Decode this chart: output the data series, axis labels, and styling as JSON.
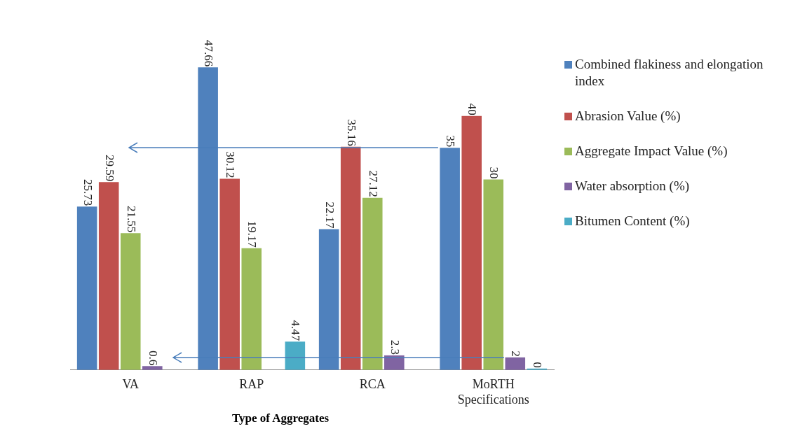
{
  "chart_data": {
    "type": "bar",
    "xlabel": "Type of Aggregates",
    "categories": [
      "VA",
      "RAP",
      "RCA",
      "MoRTH Specifications"
    ],
    "series": [
      {
        "name": "Combined flakiness and elongation index",
        "color": "#4f81bd",
        "values": [
          25.73,
          47.66,
          22.17,
          35
        ]
      },
      {
        "name": "Abrasion Value (%)",
        "color": "#c0504d",
        "values": [
          29.59,
          30.12,
          35.16,
          40
        ]
      },
      {
        "name": "Aggregate Impact Value (%)",
        "color": "#9bbb59",
        "values": [
          21.55,
          19.17,
          27.12,
          30
        ]
      },
      {
        "name": "Water absorption (%)",
        "color": "#8064a2",
        "values": [
          0.6,
          null,
          2.3,
          2
        ]
      },
      {
        "name": "Bitumen Content (%)",
        "color": "#4bacc6",
        "values": [
          null,
          4.47,
          null,
          0
        ]
      }
    ],
    "data_labels": true,
    "legend": "right",
    "tick_labels": "x",
    "grid": false
  }
}
